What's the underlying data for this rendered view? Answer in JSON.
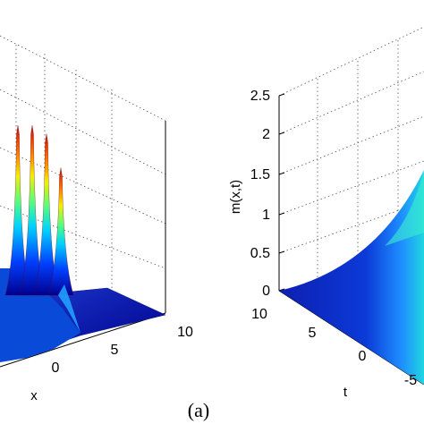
{
  "chart_data": [
    {
      "type": "surface",
      "panel": "left",
      "xlabel": "x",
      "x_ticks": [
        "0",
        "5",
        "10"
      ],
      "xlim": [
        -5,
        10
      ],
      "description_of_shape": "several narrow peaks near x≈0 decaying to flat surface by x≈10",
      "peaks": [
        {
          "x": -1.5,
          "height": 1.0
        },
        {
          "x": -0.5,
          "height": 1.0
        },
        {
          "x": 0.5,
          "height": 0.95
        },
        {
          "x": 1.5,
          "height": 0.75
        }
      ],
      "colormap": "jet"
    },
    {
      "type": "surface",
      "panel": "right",
      "zlabel": "m(x,t)",
      "z_ticks": [
        "0",
        "0.5",
        "1",
        "1.5",
        "2",
        "2.5"
      ],
      "zlim": [
        0,
        2.5
      ],
      "tlabel": "t",
      "t_ticks": [
        "10",
        "5",
        "0",
        "-5"
      ],
      "tlim": [
        -10,
        10
      ],
      "colormap": "jet"
    }
  ],
  "caption": "(a)"
}
